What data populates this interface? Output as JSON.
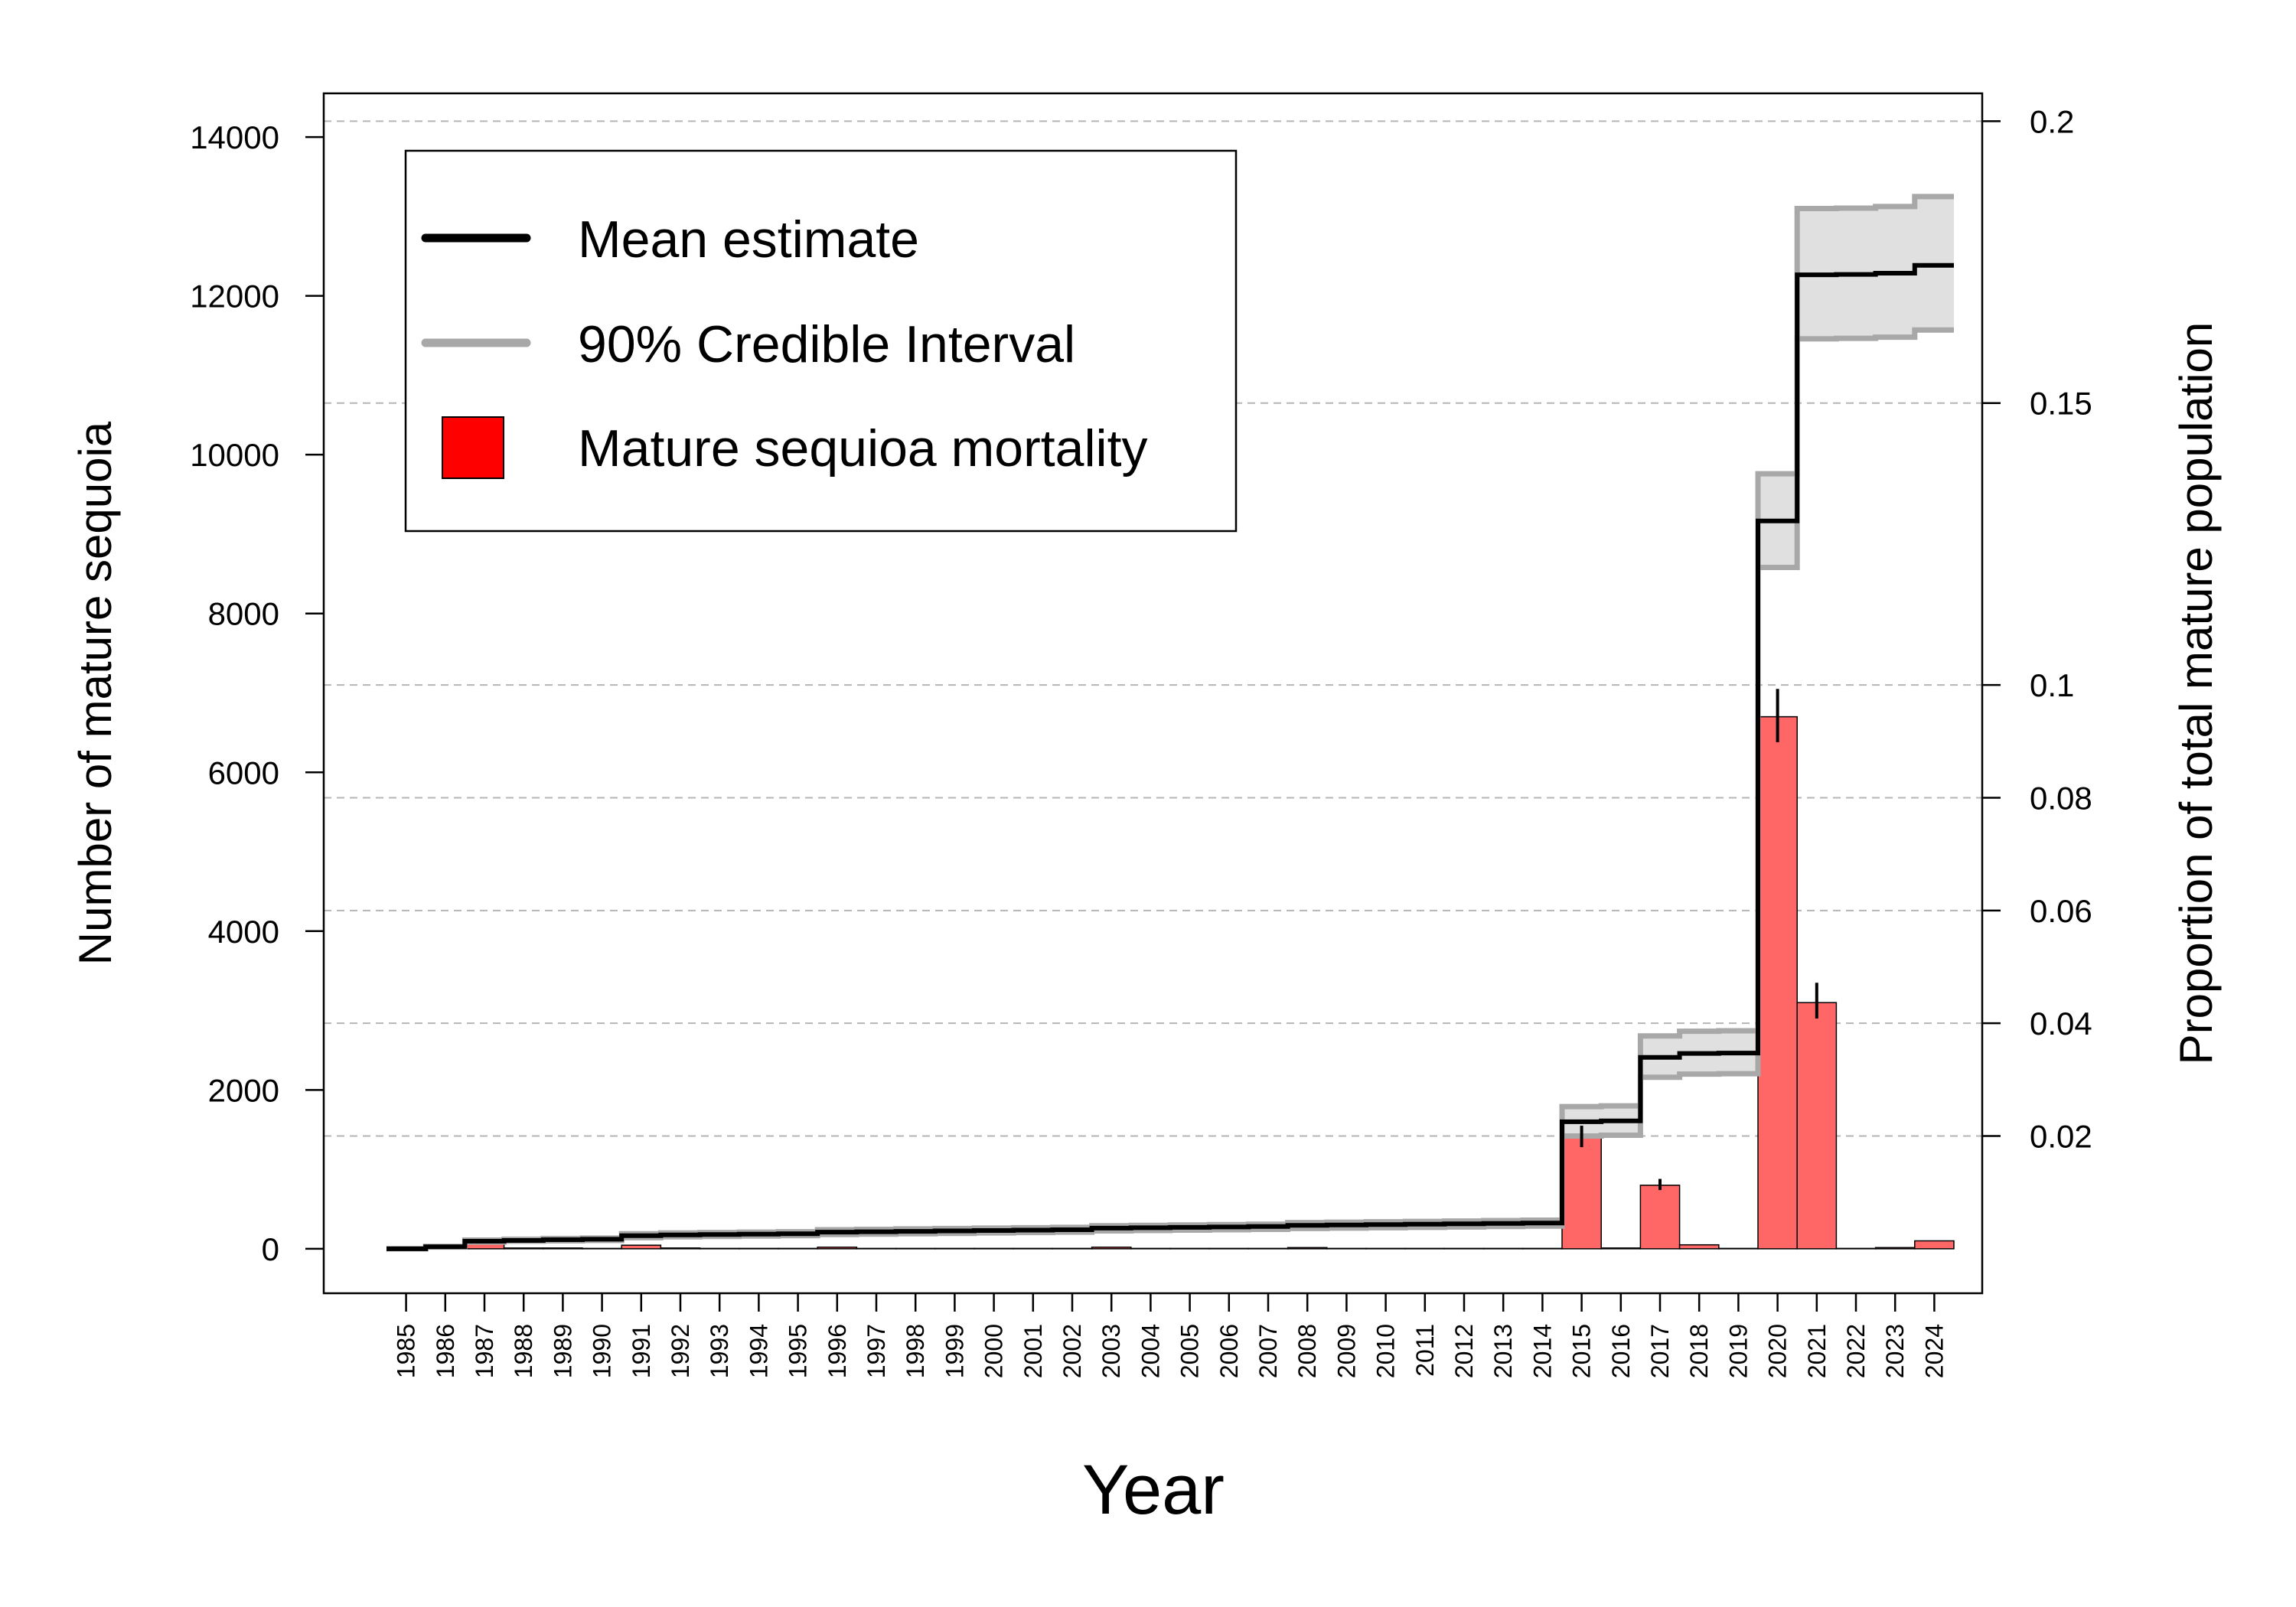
{
  "chart_data": {
    "type": "bar",
    "xlabel": "Year",
    "ylabel": "Number of mature sequoia",
    "y2label": "Proportion of total mature population",
    "ylim": [
      -560,
      14550
    ],
    "yticks": [
      0,
      2000,
      4000,
      6000,
      8000,
      10000,
      12000,
      14000
    ],
    "y2ticks": [
      {
        "label": "0.02",
        "value": 1420
      },
      {
        "label": "0.04",
        "value": 2840
      },
      {
        "label": "0.06",
        "value": 4260
      },
      {
        "label": "0.08",
        "value": 5680
      },
      {
        "label": "0.1",
        "value": 7100
      },
      {
        "label": "0.15",
        "value": 10650
      },
      {
        "label": "0.2",
        "value": 14200
      }
    ],
    "grid": "horizontal dashed at right-axis ticks",
    "legend_position": "top-left",
    "legend": {
      "mean": "Mean estimate",
      "ci": "90% Credible Interval",
      "mortality": "Mature sequioa mortality"
    },
    "colors": {
      "bar": "#ff6666",
      "mean": "#000000",
      "ci_line": "#a8a8a8",
      "ci_fill": "#e0e0e0",
      "grid": "#b5b5b5"
    },
    "years": [
      "1985",
      "1986",
      "1987",
      "1988",
      "1989",
      "1990",
      "1991",
      "1992",
      "1993",
      "1994",
      "1995",
      "1996",
      "1997",
      "1998",
      "1999",
      "2000",
      "2001",
      "2002",
      "2003",
      "2004",
      "2005",
      "2006",
      "2007",
      "2008",
      "2009",
      "2010",
      "2011",
      "2012",
      "2013",
      "2014",
      "2015",
      "2016",
      "2017",
      "2018",
      "2019",
      "2020",
      "2021",
      "2022",
      "2023",
      "2024"
    ],
    "series": [
      {
        "name": "Mature sequioa mortality",
        "values": [
          0,
          25,
          70,
          10,
          10,
          5,
          45,
          10,
          5,
          5,
          5,
          20,
          5,
          5,
          5,
          5,
          5,
          5,
          20,
          5,
          5,
          5,
          5,
          15,
          5,
          5,
          5,
          5,
          5,
          5,
          1420,
          10,
          800,
          50,
          5,
          6700,
          3100,
          5,
          15,
          100
        ],
        "err_low": [
          null,
          null,
          null,
          null,
          null,
          null,
          null,
          null,
          null,
          null,
          null,
          null,
          null,
          null,
          null,
          null,
          null,
          null,
          null,
          null,
          null,
          null,
          null,
          null,
          null,
          null,
          null,
          null,
          null,
          null,
          1280,
          null,
          740,
          null,
          null,
          6380,
          2900,
          null,
          null,
          null
        ],
        "err_high": [
          null,
          null,
          null,
          null,
          null,
          null,
          null,
          null,
          null,
          null,
          null,
          null,
          null,
          null,
          null,
          null,
          null,
          null,
          null,
          null,
          null,
          null,
          null,
          null,
          null,
          null,
          null,
          null,
          null,
          null,
          1550,
          null,
          880,
          null,
          null,
          7050,
          3350,
          null,
          null,
          null
        ]
      },
      {
        "name": "Mean estimate",
        "values": [
          0,
          25,
          95,
          105,
          115,
          120,
          165,
          175,
          180,
          185,
          190,
          210,
          215,
          220,
          225,
          230,
          235,
          240,
          260,
          265,
          270,
          275,
          280,
          295,
          300,
          305,
          310,
          315,
          320,
          325,
          1600,
          1610,
          2410,
          2460,
          2465,
          9165,
          12265,
          12270,
          12285,
          12385
        ]
      },
      {
        "name": "90% Credible Interval",
        "lower": [
          0,
          22,
          85,
          95,
          100,
          105,
          140,
          150,
          155,
          160,
          165,
          180,
          185,
          190,
          195,
          200,
          205,
          210,
          225,
          230,
          235,
          240,
          245,
          255,
          260,
          265,
          270,
          275,
          280,
          285,
          1420,
          1430,
          2160,
          2200,
          2205,
          8580,
          11460,
          11465,
          11480,
          11570
        ],
        "upper": [
          0,
          30,
          110,
          120,
          130,
          135,
          190,
          200,
          205,
          210,
          215,
          240,
          245,
          250,
          255,
          260,
          265,
          270,
          290,
          295,
          300,
          305,
          310,
          330,
          335,
          340,
          345,
          350,
          355,
          360,
          1790,
          1800,
          2680,
          2740,
          2745,
          9760,
          13100,
          13105,
          13125,
          13250
        ]
      }
    ]
  }
}
